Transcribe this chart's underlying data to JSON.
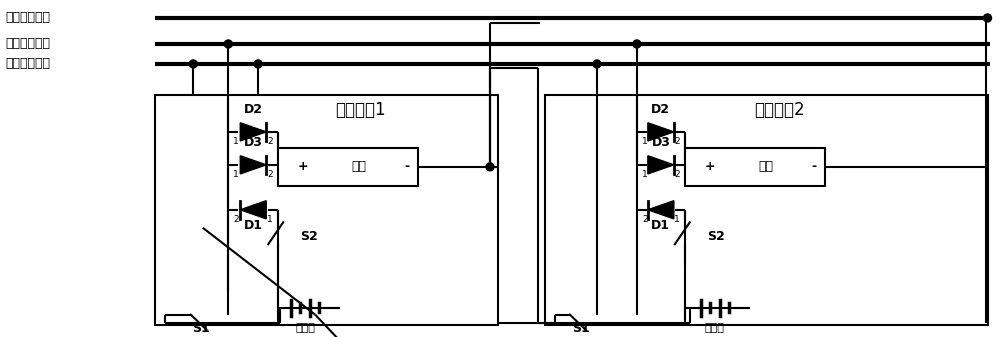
{
  "fig_width": 10.0,
  "fig_height": 3.37,
  "dpi": 100,
  "bg_color": "#ffffff",
  "bus_neg_label": "电池总线负端",
  "bus_pos_label": "电池总线正端",
  "bus_start_label": "电池开机总线",
  "module1_label": "电池模块1",
  "module2_label": "电池模块2",
  "load_label": "负载",
  "battery_label": "电池组",
  "blw": 3.0,
  "wlw": 1.5
}
